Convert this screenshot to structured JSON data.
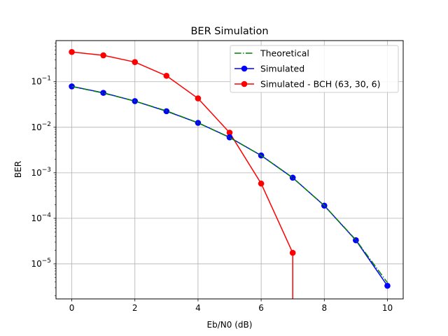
{
  "chart_data": {
    "type": "line",
    "title": "BER Simulation",
    "xlabel": "Eb/N0 (dB)",
    "ylabel": "BER",
    "xlim": [
      -0.5,
      10.5
    ],
    "ylim": [
      1.7e-06,
      0.8
    ],
    "y_scale": "log",
    "grid": true,
    "legend_position": "top-right",
    "x_ticks": [
      0,
      2,
      4,
      6,
      8,
      10
    ],
    "y_ticks": [
      {
        "value": 1e-05,
        "base": "10",
        "exp": "−5"
      },
      {
        "value": 0.0001,
        "base": "10",
        "exp": "−4"
      },
      {
        "value": 0.001,
        "base": "10",
        "exp": "−3"
      },
      {
        "value": 0.01,
        "base": "10",
        "exp": "−2"
      },
      {
        "value": 0.1,
        "base": "10",
        "exp": "−1"
      }
    ],
    "series": [
      {
        "name": "Theoretical",
        "color": "#008000",
        "style": "dashdot",
        "marker": "none",
        "x": [
          0,
          1,
          2,
          3,
          4,
          5,
          6,
          7,
          8,
          9,
          10
        ],
        "y": [
          0.0786,
          0.0563,
          0.0375,
          0.0229,
          0.0125,
          0.00595,
          0.00239,
          0.000773,
          0.000191,
          3.36e-05,
          3.87e-06
        ]
      },
      {
        "name": "Simulated",
        "color": "#0000ff",
        "style": "solid",
        "marker": "circle",
        "x": [
          0,
          1,
          2,
          3,
          4,
          5,
          6,
          7,
          8,
          9,
          10
        ],
        "y": [
          0.079,
          0.057,
          0.0375,
          0.0225,
          0.0125,
          0.006,
          0.0024,
          0.00078,
          0.00019,
          3.3e-05,
          3.3e-06
        ]
      },
      {
        "name": "Simulated - BCH (63, 30, 6)",
        "color": "#ff0000",
        "style": "solid",
        "marker": "circle",
        "x": [
          0,
          1,
          2,
          3,
          4,
          5,
          6,
          7
        ],
        "y": [
          0.45,
          0.38,
          0.27,
          0.135,
          0.043,
          0.0076,
          0.00058,
          1.75e-05
        ],
        "drop_to_zero_at_x": 7
      }
    ]
  }
}
